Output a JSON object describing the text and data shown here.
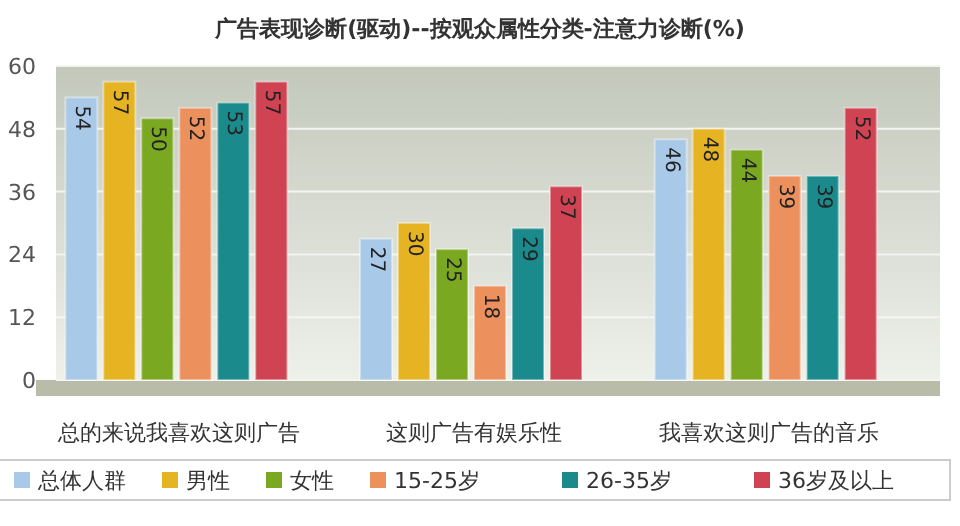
{
  "chart_data": {
    "type": "bar",
    "title": "广告表现诊断(驱动)--按观众属性分类-注意力诊断(%)",
    "categories": [
      "总的来说我喜欢这则广告",
      "这则广告有娱乐性",
      "我喜欢这则广告的音乐"
    ],
    "series": [
      {
        "name": "总体人群",
        "color": "#a9c9e8",
        "values": [
          54,
          27,
          46
        ]
      },
      {
        "name": "男性",
        "color": "#e6b422",
        "values": [
          57,
          30,
          48
        ]
      },
      {
        "name": "女性",
        "color": "#7aa821",
        "values": [
          50,
          25,
          44
        ]
      },
      {
        "name": "15-25岁",
        "color": "#ec915e",
        "values": [
          52,
          18,
          39
        ]
      },
      {
        "name": "26-35岁",
        "color": "#1b8a8c",
        "values": [
          53,
          29,
          39
        ]
      },
      {
        "name": "36岁及以上",
        "color": "#cf4352",
        "values": [
          57,
          37,
          52
        ]
      }
    ],
    "ylim": [
      0,
      60
    ],
    "yticks": [
      0,
      12,
      24,
      36,
      48,
      60
    ],
    "grid": "y",
    "legend": "bottom",
    "data_labels": true
  }
}
